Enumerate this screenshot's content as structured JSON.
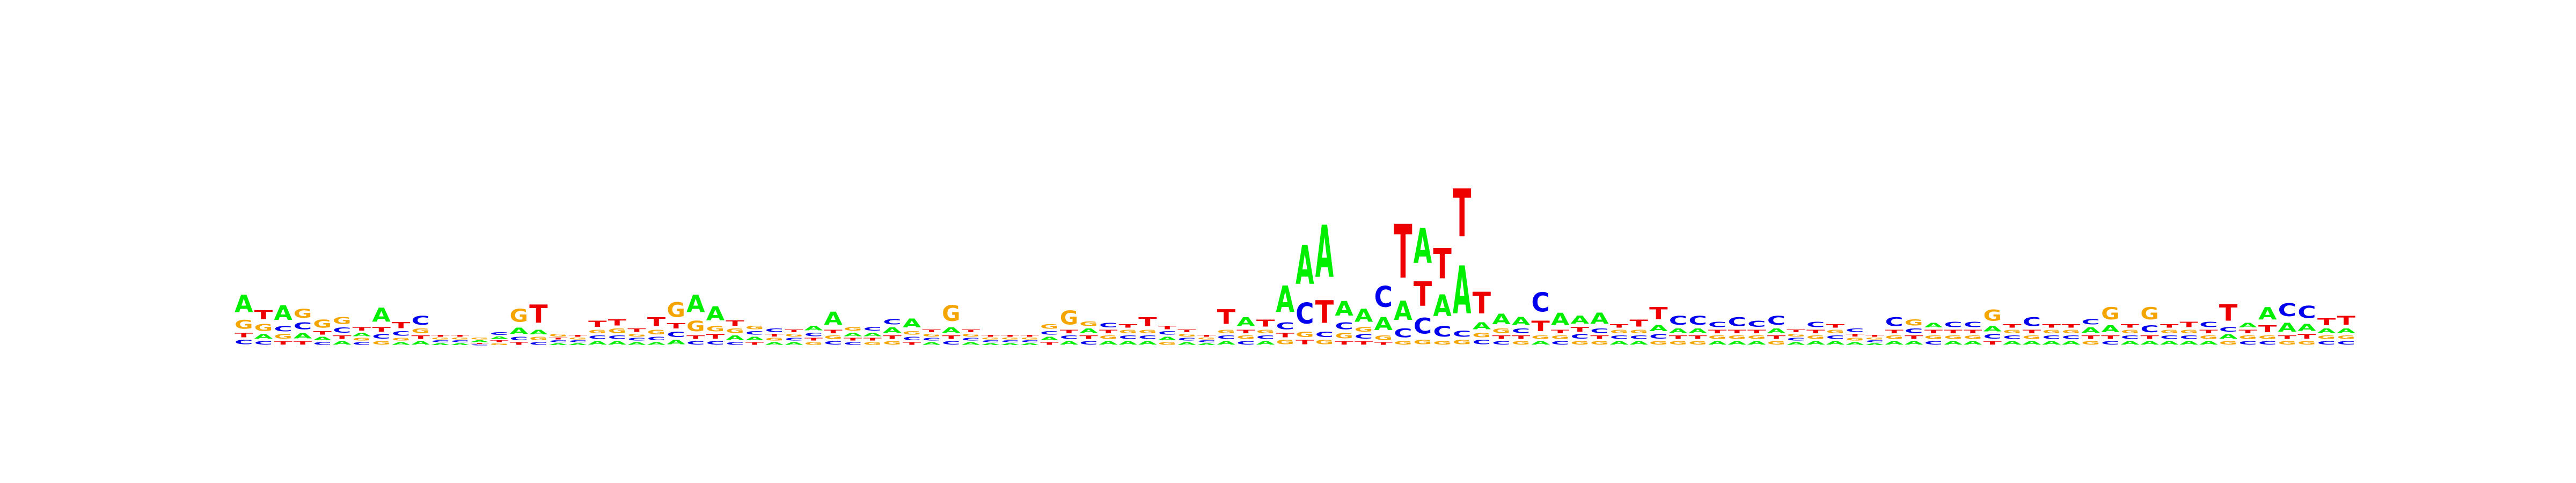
{
  "chart_data": {
    "type": "sequence-logo",
    "title": "",
    "xlabel": "",
    "ylabel": "",
    "alphabet": [
      "A",
      "C",
      "G",
      "T"
    ],
    "colors": {
      "A": "#00ee00",
      "C": "#0000ee",
      "G": "#f5a500",
      "T": "#ee0000"
    },
    "max_bits": 2.0,
    "positions": [
      {
        "A": 0.2,
        "C": 0.05,
        "G": 0.1,
        "T": 0.05
      },
      {
        "A": 0.05,
        "C": 0.04,
        "G": 0.08,
        "T": 0.1
      },
      {
        "A": 0.17,
        "C": 0.06,
        "G": 0.05,
        "T": 0.04
      },
      {
        "A": 0.06,
        "C": 0.08,
        "G": 0.1,
        "T": 0.04
      },
      {
        "A": 0.04,
        "C": 0.03,
        "G": 0.09,
        "T": 0.04
      },
      {
        "A": 0.04,
        "C": 0.06,
        "G": 0.08,
        "T": 0.04
      },
      {
        "A": 0.04,
        "C": 0.03,
        "G": 0.03,
        "T": 0.04
      },
      {
        "A": 0.16,
        "C": 0.05,
        "G": 0.04,
        "T": 0.05
      },
      {
        "A": 0.03,
        "C": 0.05,
        "G": 0.03,
        "T": 0.07
      },
      {
        "A": 0.04,
        "C": 0.1,
        "G": 0.05,
        "T": 0.04
      },
      {
        "A": 0.02,
        "C": 0.02,
        "G": 0.02,
        "T": 0.02
      },
      {
        "A": 0.02,
        "C": 0.02,
        "G": 0.02,
        "T": 0.02
      },
      {
        "A": 0.02,
        "C": 0.01,
        "G": 0.02,
        "T": 0.01
      },
      {
        "A": 0.03,
        "C": 0.03,
        "G": 0.02,
        "T": 0.02
      },
      {
        "A": 0.07,
        "C": 0.04,
        "G": 0.15,
        "T": 0.03
      },
      {
        "A": 0.05,
        "C": 0.03,
        "G": 0.04,
        "T": 0.21
      },
      {
        "A": 0.02,
        "C": 0.02,
        "G": 0.03,
        "T": 0.02
      },
      {
        "A": 0.02,
        "C": 0.02,
        "G": 0.02,
        "T": 0.02
      },
      {
        "A": 0.04,
        "C": 0.04,
        "G": 0.04,
        "T": 0.07
      },
      {
        "A": 0.04,
        "C": 0.04,
        "G": 0.05,
        "T": 0.07
      },
      {
        "A": 0.03,
        "C": 0.03,
        "G": 0.03,
        "T": 0.04
      },
      {
        "A": 0.03,
        "C": 0.04,
        "G": 0.05,
        "T": 0.1
      },
      {
        "A": 0.05,
        "C": 0.06,
        "G": 0.17,
        "T": 0.06
      },
      {
        "A": 0.2,
        "C": 0.04,
        "G": 0.12,
        "T": 0.04
      },
      {
        "A": 0.16,
        "C": 0.04,
        "G": 0.06,
        "T": 0.05
      },
      {
        "A": 0.05,
        "C": 0.03,
        "G": 0.05,
        "T": 0.06
      },
      {
        "A": 0.04,
        "C": 0.04,
        "G": 0.04,
        "T": 0.03
      },
      {
        "A": 0.03,
        "C": 0.04,
        "G": 0.03,
        "T": 0.03
      },
      {
        "A": 0.03,
        "C": 0.03,
        "G": 0.03,
        "T": 0.03
      },
      {
        "A": 0.05,
        "C": 0.04,
        "G": 0.03,
        "T": 0.03
      },
      {
        "A": 0.15,
        "C": 0.04,
        "G": 0.04,
        "T": 0.04
      },
      {
        "A": 0.04,
        "C": 0.03,
        "G": 0.04,
        "T": 0.03
      },
      {
        "A": 0.04,
        "C": 0.04,
        "G": 0.03,
        "T": 0.03
      },
      {
        "A": 0.06,
        "C": 0.06,
        "G": 0.04,
        "T": 0.04
      },
      {
        "A": 0.1,
        "C": 0.04,
        "G": 0.04,
        "T": 0.03
      },
      {
        "A": 0.03,
        "C": 0.03,
        "G": 0.03,
        "T": 0.03
      },
      {
        "A": 0.06,
        "C": 0.04,
        "G": 0.18,
        "T": 0.04
      },
      {
        "A": 0.03,
        "C": 0.03,
        "G": 0.03,
        "T": 0.03
      },
      {
        "A": 0.02,
        "C": 0.02,
        "G": 0.02,
        "T": 0.02
      },
      {
        "A": 0.02,
        "C": 0.02,
        "G": 0.02,
        "T": 0.02
      },
      {
        "A": 0.02,
        "C": 0.02,
        "G": 0.02,
        "T": 0.02
      },
      {
        "A": 0.04,
        "C": 0.04,
        "G": 0.05,
        "T": 0.03
      },
      {
        "A": 0.04,
        "C": 0.04,
        "G": 0.16,
        "T": 0.04
      },
      {
        "A": 0.05,
        "C": 0.04,
        "G": 0.05,
        "T": 0.04
      },
      {
        "A": 0.04,
        "C": 0.05,
        "G": 0.04,
        "T": 0.04
      },
      {
        "A": 0.04,
        "C": 0.04,
        "G": 0.04,
        "T": 0.04
      },
      {
        "A": 0.04,
        "C": 0.04,
        "G": 0.04,
        "T": 0.1
      },
      {
        "A": 0.04,
        "C": 0.04,
        "G": 0.03,
        "T": 0.04
      },
      {
        "A": 0.03,
        "C": 0.03,
        "G": 0.03,
        "T": 0.03
      },
      {
        "A": 0.02,
        "C": 0.02,
        "G": 0.02,
        "T": 0.02
      },
      {
        "A": 0.04,
        "C": 0.04,
        "G": 0.04,
        "T": 0.17
      },
      {
        "A": 0.1,
        "C": 0.04,
        "G": 0.04,
        "T": 0.04
      },
      {
        "A": 0.04,
        "C": 0.04,
        "G": 0.04,
        "T": 0.08
      },
      {
        "A": 0.3,
        "C": 0.08,
        "G": 0.05,
        "T": 0.05
      },
      {
        "A": 0.45,
        "C": 0.24,
        "G": 0.06,
        "T": 0.05
      },
      {
        "A": 0.6,
        "C": 0.06,
        "G": 0.05,
        "T": 0.26
      },
      {
        "A": 0.17,
        "C": 0.08,
        "G": 0.06,
        "T": 0.04
      },
      {
        "A": 0.15,
        "C": 0.05,
        "G": 0.05,
        "T": 0.04
      },
      {
        "A": 0.15,
        "C": 0.24,
        "G": 0.05,
        "T": 0.03
      },
      {
        "A": 0.22,
        "C": 0.1,
        "G": 0.04,
        "T": 0.62
      },
      {
        "A": 0.4,
        "C": 0.18,
        "G": 0.05,
        "T": 0.28
      },
      {
        "A": 0.25,
        "C": 0.12,
        "G": 0.04,
        "T": 0.35
      },
      {
        "A": 0.55,
        "C": 0.07,
        "G": 0.05,
        "T": 0.55
      },
      {
        "A": 0.08,
        "C": 0.05,
        "G": 0.05,
        "T": 0.25
      },
      {
        "A": 0.12,
        "C": 0.04,
        "G": 0.05,
        "T": 0.04
      },
      {
        "A": 0.09,
        "C": 0.05,
        "G": 0.04,
        "T": 0.04
      },
      {
        "A": 0.04,
        "C": 0.22,
        "G": 0.04,
        "T": 0.12
      },
      {
        "A": 0.14,
        "C": 0.04,
        "G": 0.04,
        "T": 0.04
      },
      {
        "A": 0.09,
        "C": 0.05,
        "G": 0.04,
        "T": 0.05
      },
      {
        "A": 0.13,
        "C": 0.05,
        "G": 0.04,
        "T": 0.04
      },
      {
        "A": 0.04,
        "C": 0.04,
        "G": 0.04,
        "T": 0.04
      },
      {
        "A": 0.04,
        "C": 0.04,
        "G": 0.04,
        "T": 0.08
      },
      {
        "A": 0.07,
        "C": 0.05,
        "G": 0.04,
        "T": 0.14
      },
      {
        "A": 0.05,
        "C": 0.1,
        "G": 0.04,
        "T": 0.04
      },
      {
        "A": 0.05,
        "C": 0.1,
        "G": 0.04,
        "T": 0.04
      },
      {
        "A": 0.04,
        "C": 0.06,
        "G": 0.04,
        "T": 0.04
      },
      {
        "A": 0.04,
        "C": 0.1,
        "G": 0.04,
        "T": 0.04
      },
      {
        "A": 0.04,
        "C": 0.07,
        "G": 0.04,
        "T": 0.04
      },
      {
        "A": 0.05,
        "C": 0.1,
        "G": 0.04,
        "T": 0.04
      },
      {
        "A": 0.03,
        "C": 0.03,
        "G": 0.03,
        "T": 0.03
      },
      {
        "A": 0.04,
        "C": 0.06,
        "G": 0.04,
        "T": 0.04
      },
      {
        "A": 0.04,
        "C": 0.04,
        "G": 0.04,
        "T": 0.04
      },
      {
        "A": 0.03,
        "C": 0.04,
        "G": 0.03,
        "T": 0.03
      },
      {
        "A": 0.02,
        "C": 0.02,
        "G": 0.02,
        "T": 0.02
      },
      {
        "A": 0.04,
        "C": 0.1,
        "G": 0.04,
        "T": 0.04
      },
      {
        "A": 0.04,
        "C": 0.05,
        "G": 0.07,
        "T": 0.04
      },
      {
        "A": 0.05,
        "C": 0.04,
        "G": 0.04,
        "T": 0.04
      },
      {
        "A": 0.04,
        "C": 0.06,
        "G": 0.04,
        "T": 0.04
      },
      {
        "A": 0.04,
        "C": 0.06,
        "G": 0.04,
        "T": 0.04
      },
      {
        "A": 0.06,
        "C": 0.05,
        "G": 0.13,
        "T": 0.04
      },
      {
        "A": 0.04,
        "C": 0.04,
        "G": 0.04,
        "T": 0.04
      },
      {
        "A": 0.04,
        "C": 0.1,
        "G": 0.04,
        "T": 0.04
      },
      {
        "A": 0.04,
        "C": 0.04,
        "G": 0.04,
        "T": 0.04
      },
      {
        "A": 0.04,
        "C": 0.04,
        "G": 0.04,
        "T": 0.04
      },
      {
        "A": 0.06,
        "C": 0.06,
        "G": 0.04,
        "T": 0.04
      },
      {
        "A": 0.08,
        "C": 0.04,
        "G": 0.14,
        "T": 0.04
      },
      {
        "A": 0.04,
        "C": 0.04,
        "G": 0.04,
        "T": 0.04
      },
      {
        "A": 0.04,
        "C": 0.08,
        "G": 0.14,
        "T": 0.04
      },
      {
        "A": 0.04,
        "C": 0.04,
        "G": 0.04,
        "T": 0.04
      },
      {
        "A": 0.04,
        "C": 0.04,
        "G": 0.04,
        "T": 0.06
      },
      {
        "A": 0.04,
        "C": 0.06,
        "G": 0.04,
        "T": 0.04
      },
      {
        "A": 0.05,
        "C": 0.05,
        "G": 0.04,
        "T": 0.19
      },
      {
        "A": 0.05,
        "C": 0.04,
        "G": 0.04,
        "T": 0.04
      },
      {
        "A": 0.14,
        "C": 0.04,
        "G": 0.04,
        "T": 0.08
      },
      {
        "A": 0.1,
        "C": 0.15,
        "G": 0.04,
        "T": 0.04
      },
      {
        "A": 0.08,
        "C": 0.14,
        "G": 0.04,
        "T": 0.05
      },
      {
        "A": 0.05,
        "C": 0.04,
        "G": 0.04,
        "T": 0.08
      },
      {
        "A": 0.05,
        "C": 0.04,
        "G": 0.04,
        "T": 0.1
      }
    ]
  }
}
